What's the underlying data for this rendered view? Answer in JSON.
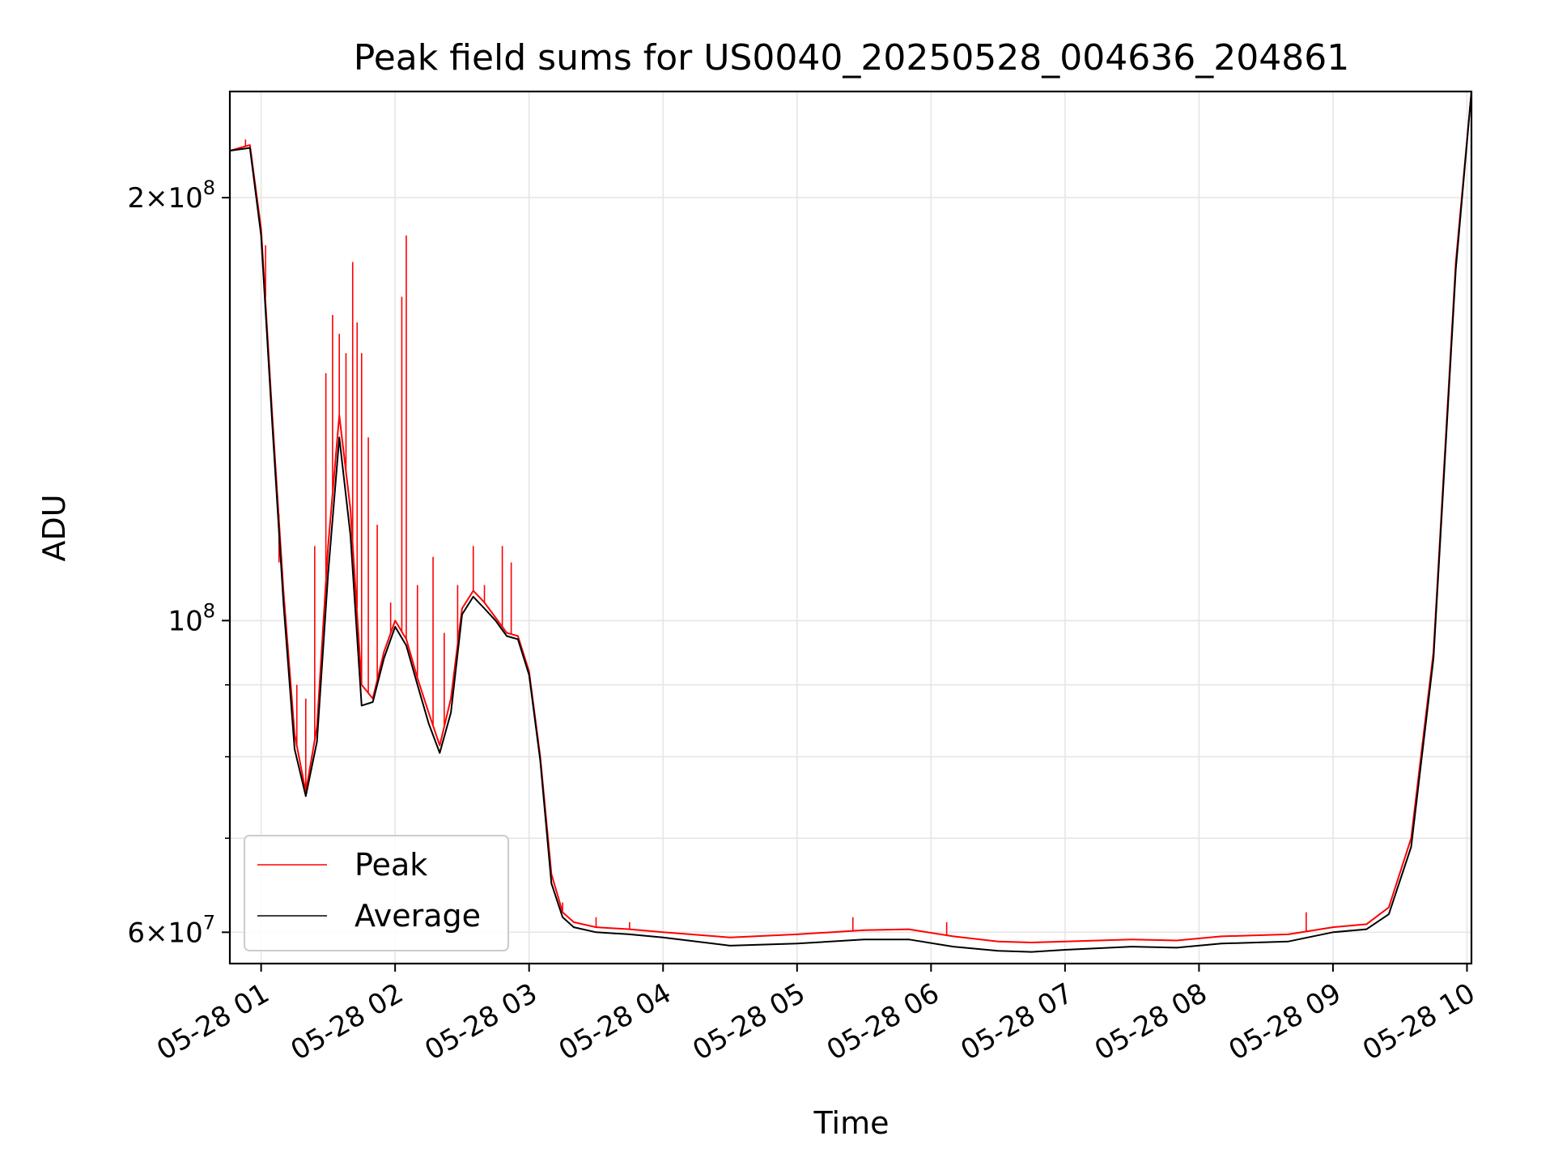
{
  "chart_data": {
    "type": "line",
    "title": "Peak field sums for US0040_20250528_004636_204861",
    "xlabel": "Time",
    "ylabel": "ADU",
    "yscale": "log",
    "xlim": [
      "2025-05-28T00:46",
      "2025-05-28T10:02"
    ],
    "ylim": [
      57000000,
      238000000
    ],
    "grid": true,
    "legend_position": "lower-left",
    "x_ticks": [
      "05-28 01",
      "05-28 02",
      "05-28 03",
      "05-28 04",
      "05-28 05",
      "05-28 06",
      "05-28 07",
      "05-28 08",
      "05-28 09",
      "05-28 10"
    ],
    "x_tick_times": [
      "2025-05-28T01:00",
      "2025-05-28T02:00",
      "2025-05-28T03:00",
      "2025-05-28T04:00",
      "2025-05-28T05:00",
      "2025-05-28T06:00",
      "2025-05-28T07:00",
      "2025-05-28T08:00",
      "2025-05-28T09:00",
      "2025-05-28T10:00"
    ],
    "y_major_ticks": [
      {
        "value": 60000000,
        "label_mantissa": "6",
        "label_exp": "7",
        "label_prefix": "6×10"
      },
      {
        "value": 100000000,
        "label_mantissa": "",
        "label_exp": "8",
        "label_prefix": "10"
      },
      {
        "value": 200000000,
        "label_mantissa": "2",
        "label_exp": "8",
        "label_prefix": "2×10"
      }
    ],
    "y_minor_ticks": [
      70000000,
      80000000,
      90000000
    ],
    "series": [
      {
        "name": "Peak",
        "color": "#ff0000",
        "x": [
          "2025-05-28T00:46",
          "2025-05-28T00:55",
          "2025-05-28T01:00",
          "2025-05-28T01:05",
          "2025-05-28T01:10",
          "2025-05-28T01:15",
          "2025-05-28T01:20",
          "2025-05-28T01:25",
          "2025-05-28T01:30",
          "2025-05-28T01:35",
          "2025-05-28T01:40",
          "2025-05-28T01:45",
          "2025-05-28T01:50",
          "2025-05-28T01:55",
          "2025-05-28T02:00",
          "2025-05-28T02:05",
          "2025-05-28T02:10",
          "2025-05-28T02:15",
          "2025-05-28T02:20",
          "2025-05-28T02:25",
          "2025-05-28T02:30",
          "2025-05-28T02:35",
          "2025-05-28T02:40",
          "2025-05-28T02:45",
          "2025-05-28T02:50",
          "2025-05-28T02:55",
          "2025-05-28T03:00",
          "2025-05-28T03:05",
          "2025-05-28T03:10",
          "2025-05-28T03:15",
          "2025-05-28T03:20",
          "2025-05-28T03:30",
          "2025-05-28T03:45",
          "2025-05-28T04:00",
          "2025-05-28T04:30",
          "2025-05-28T05:00",
          "2025-05-28T05:30",
          "2025-05-28T05:50",
          "2025-05-28T06:10",
          "2025-05-28T06:30",
          "2025-05-28T06:45",
          "2025-05-28T07:00",
          "2025-05-28T07:30",
          "2025-05-28T07:50",
          "2025-05-28T08:10",
          "2025-05-28T08:40",
          "2025-05-28T09:00",
          "2025-05-28T09:15",
          "2025-05-28T09:25",
          "2025-05-28T09:35",
          "2025-05-28T09:45",
          "2025-05-28T09:55",
          "2025-05-28T10:02"
        ],
        "y": [
          216000000,
          218000000,
          190000000,
          140000000,
          105000000,
          83000000,
          75500000,
          84000000,
          113000000,
          140000000,
          120000000,
          90000000,
          88000000,
          95000000,
          100000000,
          97000000,
          91000000,
          86000000,
          81500000,
          88000000,
          102000000,
          105000000,
          103000000,
          100500000,
          98000000,
          97500000,
          92000000,
          80000000,
          66000000,
          62000000,
          61000000,
          60500000,
          60300000,
          60000000,
          59500000,
          59800000,
          60200000,
          60300000,
          59600000,
          59100000,
          59000000,
          59100000,
          59300000,
          59200000,
          59600000,
          59800000,
          60500000,
          60800000,
          62500000,
          70000000,
          95000000,
          180000000,
          238000000
        ],
        "spikes": [
          {
            "x": "2025-05-28T00:53",
            "y": 220000000
          },
          {
            "x": "2025-05-28T01:02",
            "y": 185000000
          },
          {
            "x": "2025-05-28T01:03",
            "y": 160000000
          },
          {
            "x": "2025-05-28T01:08",
            "y": 110000000
          },
          {
            "x": "2025-05-28T01:12",
            "y": 95000000
          },
          {
            "x": "2025-05-28T01:16",
            "y": 90000000
          },
          {
            "x": "2025-05-28T01:20",
            "y": 88000000
          },
          {
            "x": "2025-05-28T01:24",
            "y": 113000000
          },
          {
            "x": "2025-05-28T01:29",
            "y": 150000000
          },
          {
            "x": "2025-05-28T01:32",
            "y": 165000000
          },
          {
            "x": "2025-05-28T01:35",
            "y": 160000000
          },
          {
            "x": "2025-05-28T01:38",
            "y": 155000000
          },
          {
            "x": "2025-05-28T01:41",
            "y": 180000000
          },
          {
            "x": "2025-05-28T01:43",
            "y": 163000000
          },
          {
            "x": "2025-05-28T01:45",
            "y": 155000000
          },
          {
            "x": "2025-05-28T01:48",
            "y": 135000000
          },
          {
            "x": "2025-05-28T01:52",
            "y": 117000000
          },
          {
            "x": "2025-05-28T01:58",
            "y": 103000000
          },
          {
            "x": "2025-05-28T02:03",
            "y": 170000000
          },
          {
            "x": "2025-05-28T02:05",
            "y": 188000000
          },
          {
            "x": "2025-05-28T02:10",
            "y": 106000000
          },
          {
            "x": "2025-05-28T02:17",
            "y": 111000000
          },
          {
            "x": "2025-05-28T02:22",
            "y": 98000000
          },
          {
            "x": "2025-05-28T02:28",
            "y": 106000000
          },
          {
            "x": "2025-05-28T02:35",
            "y": 113000000
          },
          {
            "x": "2025-05-28T02:40",
            "y": 106000000
          },
          {
            "x": "2025-05-28T02:48",
            "y": 113000000
          },
          {
            "x": "2025-05-28T02:52",
            "y": 110000000
          },
          {
            "x": "2025-05-28T03:15",
            "y": 63000000
          },
          {
            "x": "2025-05-28T03:30",
            "y": 61500000
          },
          {
            "x": "2025-05-28T03:45",
            "y": 61000000
          },
          {
            "x": "2025-05-28T05:25",
            "y": 61500000
          },
          {
            "x": "2025-05-28T06:07",
            "y": 61000000
          },
          {
            "x": "2025-05-28T08:48",
            "y": 62000000
          }
        ]
      },
      {
        "name": "Average",
        "color": "#000000",
        "x": [
          "2025-05-28T00:46",
          "2025-05-28T00:55",
          "2025-05-28T01:00",
          "2025-05-28T01:05",
          "2025-05-28T01:10",
          "2025-05-28T01:15",
          "2025-05-28T01:20",
          "2025-05-28T01:25",
          "2025-05-28T01:30",
          "2025-05-28T01:35",
          "2025-05-28T01:40",
          "2025-05-28T01:45",
          "2025-05-28T01:50",
          "2025-05-28T01:55",
          "2025-05-28T02:00",
          "2025-05-28T02:05",
          "2025-05-28T02:10",
          "2025-05-28T02:15",
          "2025-05-28T02:20",
          "2025-05-28T02:25",
          "2025-05-28T02:30",
          "2025-05-28T02:35",
          "2025-05-28T02:40",
          "2025-05-28T02:45",
          "2025-05-28T02:50",
          "2025-05-28T02:55",
          "2025-05-28T03:00",
          "2025-05-28T03:05",
          "2025-05-28T03:10",
          "2025-05-28T03:15",
          "2025-05-28T03:20",
          "2025-05-28T03:30",
          "2025-05-28T03:45",
          "2025-05-28T04:00",
          "2025-05-28T04:30",
          "2025-05-28T05:00",
          "2025-05-28T05:30",
          "2025-05-28T05:50",
          "2025-05-28T06:10",
          "2025-05-28T06:30",
          "2025-05-28T06:45",
          "2025-05-28T07:00",
          "2025-05-28T07:30",
          "2025-05-28T07:50",
          "2025-05-28T08:10",
          "2025-05-28T08:40",
          "2025-05-28T09:00",
          "2025-05-28T09:15",
          "2025-05-28T09:25",
          "2025-05-28T09:35",
          "2025-05-28T09:45",
          "2025-05-28T09:55",
          "2025-05-28T10:02"
        ],
        "y": [
          216000000,
          217000000,
          188000000,
          138000000,
          103000000,
          81000000,
          75000000,
          82000000,
          108000000,
          135000000,
          115000000,
          87000000,
          87500000,
          94000000,
          99000000,
          96000000,
          90000000,
          84500000,
          80500000,
          86000000,
          101000000,
          104000000,
          102000000,
          100000000,
          97500000,
          97000000,
          91500000,
          79500000,
          65000000,
          61500000,
          60500000,
          60000000,
          59800000,
          59500000,
          58700000,
          58900000,
          59300000,
          59300000,
          58600000,
          58200000,
          58100000,
          58300000,
          58600000,
          58500000,
          58900000,
          59100000,
          60000000,
          60300000,
          61800000,
          69000000,
          94000000,
          178000000,
          238000000
        ]
      }
    ]
  }
}
